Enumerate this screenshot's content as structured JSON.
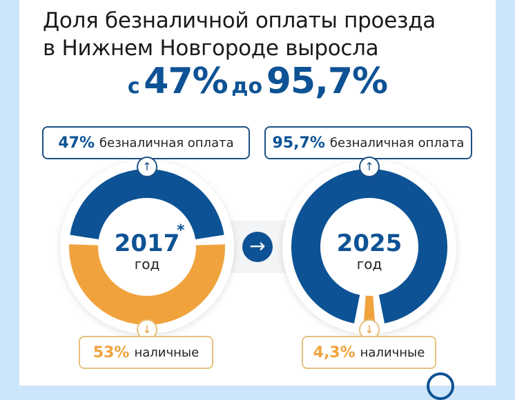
{
  "title_line1": "Доля безналичной оплаты проезда",
  "title_line2": "в Нижнем Новгороде выросла",
  "headline": {
    "from_word": "с",
    "from_value": "47%",
    "to_word": "до",
    "to_value": "95,7%"
  },
  "colors": {
    "cashless": "#0d5294",
    "cash": "#f0a33c",
    "background": "#cde5fa"
  },
  "chart_data": [
    {
      "type": "pie",
      "title": "2017",
      "center_label": "год",
      "footnote_mark": "*",
      "categories": [
        "безналичная оплата",
        "наличные"
      ],
      "values": [
        47,
        53
      ],
      "labels": {
        "cashless_value": "47%",
        "cashless_text": "безналичная оплата",
        "cash_value": "53%",
        "cash_text": "наличные"
      }
    },
    {
      "type": "pie",
      "title": "2025",
      "center_label": "год",
      "categories": [
        "безналичная оплата",
        "наличные"
      ],
      "values": [
        95.7,
        4.3
      ],
      "labels": {
        "cashless_value": "95,7%",
        "cashless_text": "безналичная оплата",
        "cash_value": "4,3%",
        "cash_text": "наличные"
      }
    }
  ],
  "icons": {
    "up": "↑",
    "down": "↓",
    "next": "→"
  }
}
